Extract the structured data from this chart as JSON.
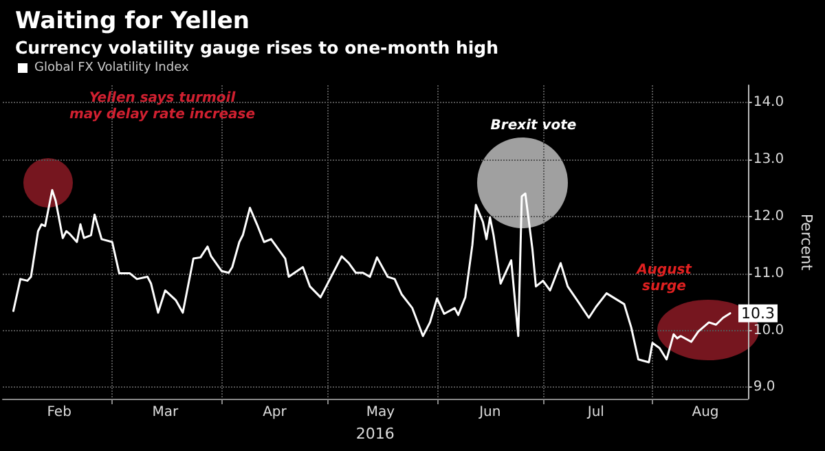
{
  "chart_data": {
    "type": "line",
    "title": "Waiting for Yellen",
    "subtitle": "Currency volatility gauge rises to one-month high",
    "xlabel": "2016",
    "ylabel": "Percent",
    "x": [
      "2016-02-02",
      "2016-02-04",
      "2016-02-06",
      "2016-02-07",
      "2016-02-09",
      "2016-02-10",
      "2016-02-11",
      "2016-02-13",
      "2016-02-14",
      "2016-02-16",
      "2016-02-17",
      "2016-02-18",
      "2016-02-20",
      "2016-02-21",
      "2016-02-22",
      "2016-02-24",
      "2016-02-25",
      "2016-02-27",
      "2016-03-01",
      "2016-03-03",
      "2016-03-06",
      "2016-03-08",
      "2016-03-11",
      "2016-03-12",
      "2016-03-14",
      "2016-03-16",
      "2016-03-19",
      "2016-03-21",
      "2016-03-24",
      "2016-03-26",
      "2016-03-28",
      "2016-03-29",
      "2016-04-01",
      "2016-04-03",
      "2016-04-04",
      "2016-04-06",
      "2016-04-07",
      "2016-04-09",
      "2016-04-11",
      "2016-04-13",
      "2016-04-15",
      "2016-04-19",
      "2016-04-20",
      "2016-04-24",
      "2016-04-26",
      "2016-04-29",
      "2016-05-02",
      "2016-05-05",
      "2016-05-07",
      "2016-05-09",
      "2016-05-11",
      "2016-05-13",
      "2016-05-15",
      "2016-05-18",
      "2016-05-20",
      "2016-05-22",
      "2016-05-25",
      "2016-05-28",
      "2016-05-30",
      "2016-06-01",
      "2016-06-03",
      "2016-06-06",
      "2016-06-07",
      "2016-06-09",
      "2016-06-11",
      "2016-06-12",
      "2016-06-14",
      "2016-06-15",
      "2016-06-16",
      "2016-06-17",
      "2016-06-19",
      "2016-06-22",
      "2016-06-24",
      "2016-06-25",
      "2016-06-26",
      "2016-06-28",
      "2016-06-29",
      "2016-07-01",
      "2016-07-03",
      "2016-07-06",
      "2016-07-08",
      "2016-07-11",
      "2016-07-14",
      "2016-07-16",
      "2016-07-19",
      "2016-07-24",
      "2016-07-26",
      "2016-07-28",
      "2016-07-31",
      "2016-08-01",
      "2016-08-03",
      "2016-08-05",
      "2016-08-07",
      "2016-08-08",
      "2016-08-09",
      "2016-08-12",
      "2016-08-14",
      "2016-08-17",
      "2016-08-19",
      "2016-08-21",
      "2016-08-23"
    ],
    "series": [
      {
        "name": "Global FX Volatility Index",
        "color": "#ffffff",
        "values": [
          10.34,
          10.9,
          10.87,
          10.94,
          11.74,
          11.86,
          11.83,
          12.46,
          12.27,
          11.62,
          11.74,
          11.69,
          11.55,
          11.86,
          11.62,
          11.67,
          12.03,
          11.6,
          11.55,
          11.0,
          11.0,
          10.9,
          10.94,
          10.82,
          10.31,
          10.7,
          10.53,
          10.31,
          11.26,
          11.28,
          11.47,
          11.3,
          11.04,
          11.01,
          11.11,
          11.55,
          11.67,
          12.15,
          11.86,
          11.55,
          11.6,
          11.26,
          10.94,
          11.11,
          10.77,
          10.58,
          10.94,
          11.3,
          11.18,
          11.01,
          11.01,
          10.94,
          11.28,
          10.94,
          10.9,
          10.63,
          10.39,
          9.9,
          10.14,
          10.56,
          10.29,
          10.39,
          10.27,
          10.58,
          11.5,
          12.2,
          11.9,
          11.6,
          11.98,
          11.67,
          10.82,
          11.23,
          9.9,
          12.35,
          12.4,
          11.43,
          10.77,
          10.87,
          10.7,
          11.18,
          10.77,
          10.5,
          10.22,
          10.41,
          10.65,
          10.46,
          10.05,
          9.49,
          9.44,
          9.78,
          9.69,
          9.49,
          9.93,
          9.86,
          9.9,
          9.8,
          9.98,
          10.14,
          10.1,
          10.22,
          10.3
        ],
        "value_labels": [
          null,
          null,
          null,
          null,
          null,
          null,
          null,
          null,
          null,
          null,
          null,
          null,
          null,
          null,
          null,
          null,
          null,
          null,
          null,
          null,
          null,
          null,
          null,
          null,
          null,
          null,
          null,
          null,
          null,
          null,
          null,
          null,
          null,
          null,
          null,
          null,
          null,
          null,
          null,
          null,
          null,
          null,
          null,
          null,
          null,
          null,
          null,
          null,
          null,
          null,
          null,
          null,
          null,
          null,
          null,
          null,
          null,
          null,
          null,
          null,
          null,
          null,
          null,
          null,
          null,
          null,
          null,
          null,
          null,
          null,
          null,
          null,
          null,
          null,
          null,
          null,
          null,
          null,
          null,
          null,
          null,
          null,
          null,
          null,
          null,
          null,
          null,
          null,
          null,
          null,
          null,
          null,
          null,
          null,
          null,
          null,
          null,
          null,
          null,
          null,
          "10.3"
        ]
      }
    ],
    "xlim": [
      "2016-01-30",
      "2016-08-28"
    ],
    "xticks": [
      {
        "value": "2016-02-15",
        "label": "Feb"
      },
      {
        "value": "2016-03-01",
        "label": null
      },
      {
        "value": "2016-03-16",
        "label": "Mar"
      },
      {
        "value": "2016-04-01",
        "label": null
      },
      {
        "value": "2016-04-16",
        "label": "Apr"
      },
      {
        "value": "2016-05-01",
        "label": null
      },
      {
        "value": "2016-05-16",
        "label": "May"
      },
      {
        "value": "2016-06-01",
        "label": null
      },
      {
        "value": "2016-06-16",
        "label": "Jun"
      },
      {
        "value": "2016-07-01",
        "label": null
      },
      {
        "value": "2016-07-16",
        "label": "Jul"
      },
      {
        "value": "2016-08-01",
        "label": null
      },
      {
        "value": "2016-08-16",
        "label": "Aug"
      }
    ],
    "ylim": [
      8.8,
      14.3
    ],
    "yticks": [
      {
        "value": 9,
        "label": "9.0"
      },
      {
        "value": 10,
        "label": "10.0"
      },
      {
        "value": 11,
        "label": "11.0"
      },
      {
        "value": 12,
        "label": "12.0"
      },
      {
        "value": 13,
        "label": "13.0"
      },
      {
        "value": 14,
        "label": "14.0"
      }
    ],
    "annotations": [
      "Yellen says turmoil may delay rate increase",
      "Brexit vote",
      "August surge"
    ],
    "grid": true,
    "legend": "top left",
    "marker": "none",
    "line_style": "solid"
  }
}
